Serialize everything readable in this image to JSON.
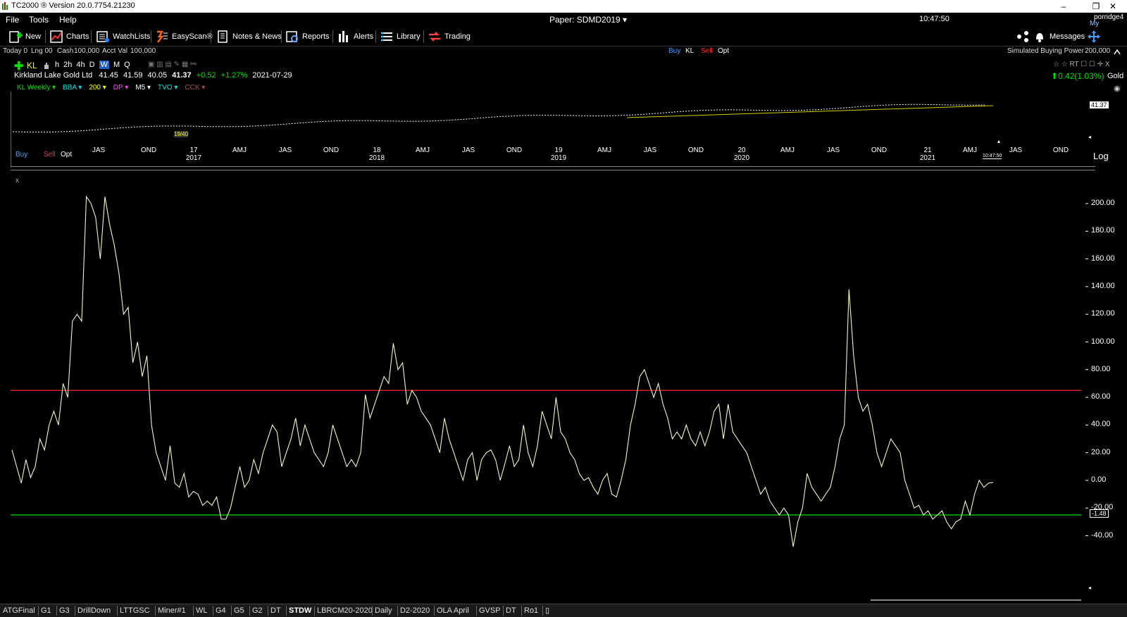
{
  "window": {
    "title": "TC2000 ® Version 20.0.7754.21230",
    "minimize": "–",
    "restore": "❐",
    "close": "✕"
  },
  "menu": {
    "file": "File",
    "tools": "Tools",
    "help": "Help",
    "paper": "Paper: SDMD2019 ▾",
    "time": "10:47:50",
    "user": "porridge4",
    "services": "My Services"
  },
  "toolbar": {
    "new": "New",
    "charts": "Charts",
    "watchlists": "WatchLists",
    "easyscan": "EasyScan®",
    "notes": "Notes & News",
    "reports": "Reports",
    "alerts": "Alerts",
    "library": "Library",
    "trading": "Trading",
    "messages": "Messages"
  },
  "account": {
    "today": "Today 0",
    "lng": "Lng 0",
    "sht": "0",
    "cash_label": "Cash",
    "cash": "100,000",
    "acct_label": "Acct Val",
    "acct": "100,000",
    "buy": "Buy",
    "kl": "KL",
    "sell": "Sell",
    "opt": "Opt",
    "bp_label": "Simulated Buying Power",
    "bp": "200,000"
  },
  "chart_header": {
    "symbol": "KL",
    "periods": [
      "h",
      "2h",
      "4h",
      "D",
      "W",
      "M",
      "Q"
    ],
    "active_period": "W",
    "name": "Kirkland Lake Gold Ltd",
    "open": "41.45",
    "high": "41.59",
    "low": "40.05",
    "close": "41.37",
    "change": "+0.52",
    "change_pct": "+1.27%",
    "date": "2021-07-29",
    "right_change": "0.42(1.03%)",
    "industry": "Gold",
    "right_icons": "☆ ☆ RT ☐ ☐ ✛ X"
  },
  "indicators": [
    {
      "label": "KL Weekly ▾",
      "color": "#00e000"
    },
    {
      "label": "BBA ▾",
      "color": "#00e0e0"
    },
    {
      "label": "200 ▾",
      "color": "#ffff00"
    },
    {
      "label": "DP ▾",
      "color": "#ff40ff"
    },
    {
      "label": "M5 ▾",
      "color": "#ffffff"
    },
    {
      "label": "TVO ▾",
      "color": "#00e0e0"
    },
    {
      "label": "CCK ▾",
      "color": "#a05050"
    }
  ],
  "price_pane": {
    "price_tag": "41.37",
    "marker": "19/40",
    "buy": "Buy",
    "sell": "Sell",
    "opt": "Opt",
    "log": "Log",
    "clock": "10:47:50",
    "months": [
      "JAS",
      "OND",
      "17",
      "AMJ",
      "JAS",
      "OND",
      "18",
      "AMJ",
      "JAS",
      "OND",
      "19",
      "AMJ",
      "JAS",
      "OND",
      "20",
      "AMJ",
      "JAS",
      "OND",
      "21",
      "AMJ",
      "JAS",
      "OND"
    ],
    "years": [
      "2017",
      "2018",
      "2019",
      "2020",
      "2021"
    ]
  },
  "lower_pane": {
    "close_x": "x",
    "value_tag": "-1.48"
  },
  "chart_data": {
    "type": "line",
    "series": [
      {
        "values": [
          22,
          10,
          -2,
          15,
          2,
          10,
          30,
          22,
          40,
          50,
          40,
          70,
          60,
          115,
          120,
          115,
          205,
          200,
          190,
          160,
          205,
          185,
          170,
          150,
          120,
          125,
          85,
          100,
          75,
          90,
          40,
          20,
          10,
          0,
          25,
          -2,
          -5,
          5,
          -12,
          -8,
          -10,
          -18,
          -15,
          -18,
          -12,
          -28,
          -28,
          -20,
          -5,
          10,
          -5,
          0,
          15,
          5,
          20,
          30,
          40,
          35,
          10,
          20,
          30,
          45,
          25,
          40,
          30,
          20,
          15,
          10,
          20,
          40,
          30,
          20,
          10,
          15,
          10,
          20,
          62,
          45,
          55,
          65,
          75,
          70,
          99,
          80,
          85,
          55,
          65,
          60,
          50,
          45,
          40,
          30,
          20,
          45,
          30,
          20,
          10,
          0,
          15,
          20,
          0,
          15,
          20,
          22,
          15,
          0,
          12,
          25,
          10,
          15,
          40,
          20,
          10,
          25,
          50,
          40,
          30,
          60,
          35,
          30,
          20,
          15,
          5,
          0,
          2,
          -5,
          -10,
          0,
          5,
          -10,
          -12,
          0,
          15,
          40,
          55,
          75,
          80,
          70,
          60,
          70,
          55,
          45,
          30,
          35,
          30,
          40,
          30,
          25,
          35,
          25,
          35,
          50,
          55,
          30,
          55,
          35,
          30,
          25,
          20,
          10,
          0,
          -10,
          -5,
          -15,
          -20,
          -25,
          -20,
          -25,
          -48,
          -30,
          -20,
          5,
          -5,
          -10,
          -15,
          -10,
          -5,
          10,
          30,
          40,
          138,
          90,
          60,
          50,
          55,
          40,
          20,
          10,
          20,
          30,
          25,
          20,
          0,
          -10,
          -20,
          -18,
          -25,
          -22,
          -28,
          -25,
          -22,
          -30,
          -35,
          -30,
          -28,
          -15,
          -25,
          -10,
          0,
          -5,
          -2,
          -1.48
        ]
      }
    ],
    "ylim": [
      -48,
      210
    ],
    "y_ticks": [
      "200.00",
      "180.00",
      "160.00",
      "140.00",
      "120.00",
      "100.00",
      "80.00",
      "60.00",
      "40.00",
      "20.00",
      "0.00",
      "-20.00",
      "-40.00"
    ],
    "hlines": [
      {
        "value": 65,
        "color": "#ff2020"
      },
      {
        "value": -25,
        "color": "#00e000"
      }
    ],
    "line_color": "#f5f5c8",
    "grid": false
  },
  "tabs": [
    "ATGFinal",
    "G1",
    "G3",
    "DrillDown",
    "LTTGSC",
    "Miner#1",
    "WL",
    "G4",
    "G5",
    "G2",
    "DT",
    "STDW",
    "LBRCM20-2020",
    "Daily",
    "D2-2020",
    "OLA April",
    "GVSP",
    "DT",
    "Ro1"
  ],
  "active_tab": "STDW"
}
